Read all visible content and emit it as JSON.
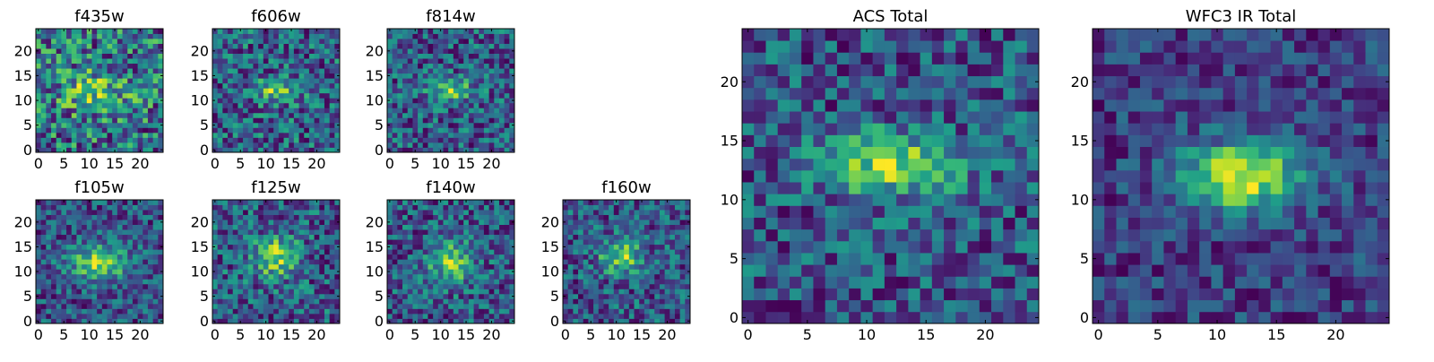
{
  "chart_data": [
    {
      "type": "heatmap",
      "id": "f435w",
      "title": "f435w",
      "grid_size": 25,
      "xlim": [
        -0.5,
        24.5
      ],
      "ylim": [
        -0.5,
        24.5
      ],
      "xticks": [
        "0",
        "5",
        "10",
        "15",
        "20"
      ],
      "yticks": [
        "0",
        "5",
        "10",
        "15",
        "20"
      ],
      "colormap": "viridis",
      "seed": 11,
      "noise": 0.55,
      "blob": {
        "x": 11,
        "y": 12,
        "sx": 5,
        "sy": 3,
        "amp": 0.35
      }
    },
    {
      "type": "heatmap",
      "id": "f606w",
      "title": "f606w",
      "grid_size": 25,
      "xlim": [
        -0.5,
        24.5
      ],
      "ylim": [
        -0.5,
        24.5
      ],
      "xticks": [
        "0",
        "5",
        "10",
        "15",
        "20"
      ],
      "yticks": [
        "0",
        "5",
        "10",
        "15",
        "20"
      ],
      "colormap": "viridis",
      "seed": 23,
      "noise": 0.5,
      "blob": {
        "x": 12,
        "y": 12,
        "sx": 3,
        "sy": 1.6,
        "amp": 0.55
      }
    },
    {
      "type": "heatmap",
      "id": "f814w",
      "title": "f814w",
      "grid_size": 25,
      "xlim": [
        -0.5,
        24.5
      ],
      "ylim": [
        -0.5,
        24.5
      ],
      "xticks": [
        "0",
        "5",
        "10",
        "15",
        "20"
      ],
      "yticks": [
        "0",
        "5",
        "10",
        "15",
        "20"
      ],
      "colormap": "viridis",
      "seed": 37,
      "noise": 0.5,
      "blob": {
        "x": 12,
        "y": 12,
        "sx": 3,
        "sy": 1.6,
        "amp": 0.6
      }
    },
    {
      "type": "heatmap",
      "id": "f105w",
      "title": "f105w",
      "grid_size": 25,
      "xlim": [
        -0.5,
        24.5
      ],
      "ylim": [
        -0.5,
        24.5
      ],
      "xticks": [
        "0",
        "5",
        "10",
        "15",
        "20"
      ],
      "yticks": [
        "0",
        "5",
        "10",
        "15",
        "20"
      ],
      "colormap": "viridis",
      "seed": 41,
      "noise": 0.35,
      "blob": {
        "x": 12,
        "y": 12,
        "sx": 4,
        "sy": 2.5,
        "amp": 0.6
      }
    },
    {
      "type": "heatmap",
      "id": "f125w",
      "title": "f125w",
      "grid_size": 25,
      "xlim": [
        -0.5,
        24.5
      ],
      "ylim": [
        -0.5,
        24.5
      ],
      "xticks": [
        "0",
        "5",
        "10",
        "15",
        "20"
      ],
      "yticks": [
        "0",
        "5",
        "10",
        "15",
        "20"
      ],
      "colormap": "viridis",
      "seed": 53,
      "noise": 0.45,
      "blob": {
        "x": 12,
        "y": 13,
        "sx": 3,
        "sy": 3,
        "amp": 0.6
      }
    },
    {
      "type": "heatmap",
      "id": "f140w",
      "title": "f140w",
      "grid_size": 25,
      "xlim": [
        -0.5,
        24.5
      ],
      "ylim": [
        -0.5,
        24.5
      ],
      "xticks": [
        "0",
        "5",
        "10",
        "15",
        "20"
      ],
      "yticks": [
        "0",
        "5",
        "10",
        "15",
        "20"
      ],
      "colormap": "viridis",
      "seed": 67,
      "noise": 0.45,
      "blob": {
        "x": 12,
        "y": 12,
        "sx": 3,
        "sy": 3,
        "amp": 0.6
      }
    },
    {
      "type": "heatmap",
      "id": "f160w",
      "title": "f160w",
      "grid_size": 25,
      "xlim": [
        -0.5,
        24.5
      ],
      "ylim": [
        -0.5,
        24.5
      ],
      "xticks": [
        "0",
        "5",
        "10",
        "15",
        "20"
      ],
      "yticks": [
        "0",
        "5",
        "10",
        "15",
        "20"
      ],
      "colormap": "viridis",
      "seed": 79,
      "noise": 0.45,
      "blob": {
        "x": 11,
        "y": 13,
        "sx": 3,
        "sy": 2.5,
        "amp": 0.6
      }
    },
    {
      "type": "heatmap",
      "id": "acs-total",
      "title": "ACS Total",
      "grid_size": 25,
      "xlim": [
        -0.5,
        24.5
      ],
      "ylim": [
        -0.5,
        24.5
      ],
      "xticks": [
        "0",
        "5",
        "10",
        "15",
        "20"
      ],
      "yticks": [
        "0",
        "5",
        "10",
        "15",
        "20"
      ],
      "colormap": "viridis",
      "seed": 97,
      "noise": 0.42,
      "blob": {
        "x": 12,
        "y": 13,
        "sx": 4,
        "sy": 1.8,
        "amp": 0.7
      }
    },
    {
      "type": "heatmap",
      "id": "wfc3-ir-total",
      "title": "WFC3 IR Total",
      "grid_size": 25,
      "xlim": [
        -0.5,
        24.5
      ],
      "ylim": [
        -0.5,
        24.5
      ],
      "xticks": [
        "0",
        "5",
        "10",
        "15",
        "20"
      ],
      "yticks": [
        "0",
        "5",
        "10",
        "15",
        "20"
      ],
      "colormap": "viridis",
      "seed": 113,
      "noise": 0.22,
      "blob": {
        "x": 12,
        "y": 12,
        "sx": 3.5,
        "sy": 2,
        "amp": 0.7
      }
    }
  ],
  "colors": {
    "frame": "#000000",
    "background": "#ffffff"
  }
}
